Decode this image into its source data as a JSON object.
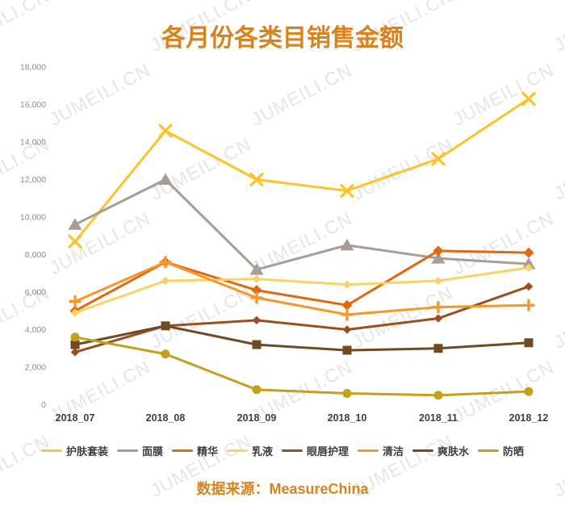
{
  "title": "各月份各类目销售金额",
  "source": "数据来源：MeasureChina",
  "watermark": "JUMEILI.CN",
  "accent_color": "#d9831f",
  "chart_data": {
    "type": "line",
    "title": "各月份各类目销售金额",
    "categories": [
      "2018_07",
      "2018_08",
      "2018_09",
      "2018_10",
      "2018_11",
      "2018_12"
    ],
    "series": [
      {
        "name": "护肤套装",
        "color": "#fec22a",
        "marker": "x",
        "values": [
          8700,
          14600,
          12000,
          11400,
          13100,
          16300
        ]
      },
      {
        "name": "面膜",
        "color": "#a89c94",
        "marker": "triangle",
        "values": [
          9600,
          12000,
          7200,
          8500,
          7800,
          7500
        ]
      },
      {
        "name": "精华",
        "color": "#e2690d",
        "marker": "diamond",
        "values": [
          5000,
          7600,
          6100,
          5300,
          8200,
          8100
        ]
      },
      {
        "name": "乳液",
        "color": "#fbd263",
        "marker": "diamond-small",
        "values": [
          4900,
          6600,
          6700,
          6400,
          6600,
          7300
        ]
      },
      {
        "name": "眼唇护理",
        "color": "#9d4e1e",
        "marker": "diamond-small",
        "values": [
          2800,
          4200,
          4500,
          4000,
          4600,
          6300
        ]
      },
      {
        "name": "清洁",
        "color": "#f79728",
        "marker": "plus",
        "values": [
          5500,
          7600,
          5700,
          4800,
          5200,
          5300
        ]
      },
      {
        "name": "爽肤水",
        "color": "#6e4b23",
        "marker": "square",
        "values": [
          3200,
          4200,
          3200,
          2900,
          3000,
          3300
        ]
      },
      {
        "name": "防晒",
        "color": "#c4a01f",
        "marker": "circle",
        "values": [
          3600,
          2700,
          800,
          600,
          500,
          700
        ]
      }
    ],
    "ylim": [
      0,
      18000
    ],
    "y_tick_step": 2000,
    "y_tick_labels": [
      "0",
      "2,000",
      "4,000",
      "6,000",
      "8,000",
      "10,000",
      "12,000",
      "14,000",
      "16,000",
      "18,000"
    ],
    "grid": false,
    "legend_position": "bottom"
  }
}
